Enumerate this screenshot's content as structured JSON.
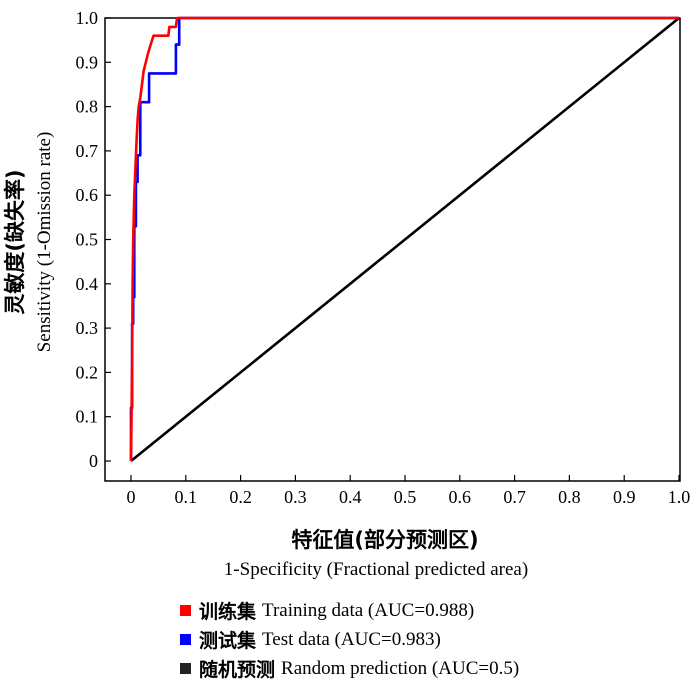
{
  "chart_data": {
    "type": "line",
    "xlabel_cn": "特征值(部分预测区)",
    "xlabel": "1-Specificity (Fractional predicted area)",
    "ylabel_cn": "灵敏度(缺失率)",
    "ylabel": "Sensitivity (1-Omission rate)",
    "xlim": [
      0,
      1
    ],
    "ylim": [
      0,
      1
    ],
    "x_ticks": [
      "0",
      "0.1",
      "0.2",
      "0.3",
      "0.4",
      "0.5",
      "0.6",
      "0.7",
      "0.8",
      "0.9",
      "1.0"
    ],
    "y_ticks": [
      "0",
      "0.1",
      "0.2",
      "0.3",
      "0.4",
      "0.5",
      "0.6",
      "0.7",
      "0.8",
      "0.9",
      "1.0"
    ],
    "grid": false,
    "legend_position": "bottom",
    "series": [
      {
        "name": "Random prediction (AUC=0.5)",
        "name_cn": "随机预测",
        "label": "Random prediction (AUC=0.5)",
        "color": "#000000",
        "points": [
          [
            0,
            0
          ],
          [
            1,
            1
          ]
        ]
      },
      {
        "name": "Test data (AUC=0.983)",
        "name_cn": "测试集",
        "label": "Test data (AUC=0.983)",
        "color": "#0000ff",
        "points": [
          [
            0,
            0
          ],
          [
            0,
            0.12
          ],
          [
            0.002,
            0.12
          ],
          [
            0.002,
            0.31
          ],
          [
            0.004,
            0.31
          ],
          [
            0.004,
            0.37
          ],
          [
            0.006,
            0.37
          ],
          [
            0.006,
            0.53
          ],
          [
            0.009,
            0.53
          ],
          [
            0.009,
            0.63
          ],
          [
            0.012,
            0.63
          ],
          [
            0.012,
            0.69
          ],
          [
            0.017,
            0.69
          ],
          [
            0.017,
            0.81
          ],
          [
            0.033,
            0.81
          ],
          [
            0.033,
            0.875
          ],
          [
            0.082,
            0.875
          ],
          [
            0.082,
            0.94
          ],
          [
            0.088,
            0.94
          ],
          [
            0.088,
            1.0
          ],
          [
            1.0,
            1.0
          ]
        ]
      },
      {
        "name": "Training data (AUC=0.988)",
        "name_cn": "训练集",
        "label": "Training data (AUC=0.988)",
        "color": "#ff0000",
        "points": [
          [
            0,
            0
          ],
          [
            0.001,
            0.09
          ],
          [
            0.002,
            0.22
          ],
          [
            0.003,
            0.4
          ],
          [
            0.004,
            0.5
          ],
          [
            0.006,
            0.6
          ],
          [
            0.008,
            0.66
          ],
          [
            0.01,
            0.72
          ],
          [
            0.012,
            0.77
          ],
          [
            0.014,
            0.8
          ],
          [
            0.017,
            0.82
          ],
          [
            0.02,
            0.85
          ],
          [
            0.023,
            0.88
          ],
          [
            0.027,
            0.9
          ],
          [
            0.031,
            0.92
          ],
          [
            0.036,
            0.94
          ],
          [
            0.041,
            0.96
          ],
          [
            0.068,
            0.96
          ],
          [
            0.07,
            0.98
          ],
          [
            0.082,
            0.98
          ],
          [
            0.084,
            1.0
          ],
          [
            1.0,
            1.0
          ]
        ]
      }
    ],
    "legend_order": [
      2,
      1,
      0
    ]
  }
}
